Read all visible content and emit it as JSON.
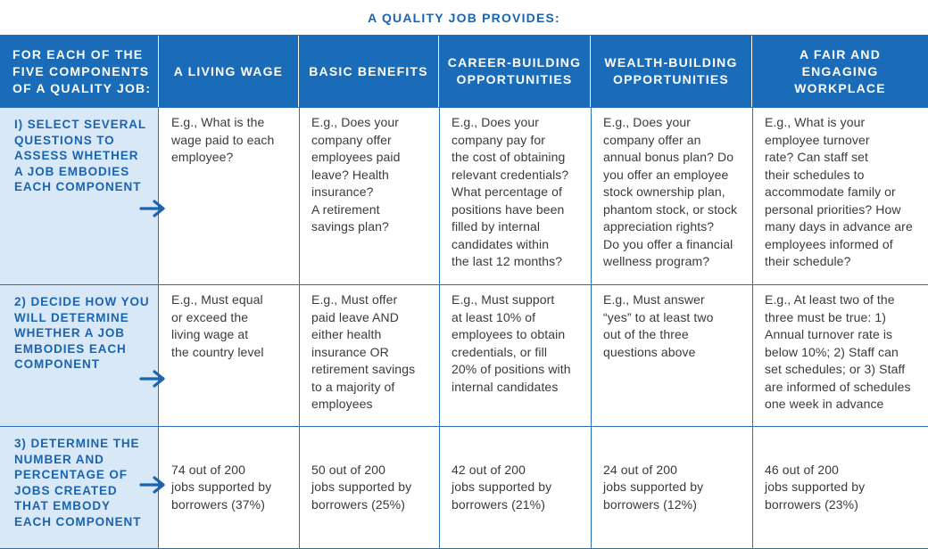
{
  "title": "A QUALITY JOB PROVIDES:",
  "header": {
    "row_label": "FOR EACH OF THE\nFIVE COMPONENTS\nOF A QUALITY JOB:",
    "columns": [
      "A LIVING WAGE",
      "BASIC BENEFITS",
      "CAREER-BUILDING\nOPPORTUNITIES",
      "WEALTH-BUILDING\nOPPORTUNITIES",
      "A FAIR AND\nENGAGING\nWORKPLACE"
    ]
  },
  "rows": [
    {
      "step": "I) SELECT SEVERAL\n    QUESTIONS TO\n    ASSESS WHETHER\n    A JOB EMBODIES\n    EACH COMPONENT",
      "cells": [
        "E.g., What is the\nwage paid to each\nemployee?",
        "E.g., Does your\ncompany offer\nemployees paid\nleave? Health\ninsurance?\nA retirement\nsavings plan?",
        "E.g., Does your\ncompany pay for\nthe cost of obtaining\nrelevant credentials?\nWhat percentage of\npositions have been\nfilled by internal\ncandidates within\nthe last 12 months?",
        "E.g., Does your\ncompany offer an\nannual bonus plan? Do\nyou offer an employee\nstock ownership plan,\nphantom stock, or stock\nappreciation rights?\nDo you offer a financial\nwellness program?",
        "E.g., What is your\nemployee turnover\nrate? Can staff set\ntheir schedules to\naccommodate family or\npersonal priorities? How\nmany days in advance are\nemployees informed of\ntheir schedule?"
      ]
    },
    {
      "step": "2) DECIDE HOW YOU\n    WILL DETERMINE\n    WHETHER A JOB\n    EMBODIES EACH\n    COMPONENT",
      "cells": [
        "E.g., Must equal\nor exceed the\nliving wage at\nthe country level",
        "E.g., Must offer\npaid leave AND\neither health\ninsurance OR\nretirement savings\nto a majority of\nemployees",
        "E.g., Must support\nat least 10% of\nemployees to obtain\ncredentials, or fill\n20% of positions with\ninternal candidates",
        "E.g., Must answer\n“yes” to at least two\nout of the three\nquestions above",
        "E.g., At least two of the\nthree must be true: 1)\nAnnual turnover rate is\nbelow 10%; 2) Staff can\nset schedules; or 3) Staff\nare informed of schedules\none week in advance"
      ]
    },
    {
      "step": "3) DETERMINE THE\n    NUMBER AND\n    PERCENTAGE OF\n    JOBS CREATED\n    THAT EMBODY\n    EACH COMPONENT",
      "cells": [
        "74 out of 200\njobs supported by\nborrowers (37%)",
        "50 out of 200\njobs supported by\nborrowers (25%)",
        "42 out of 200\njobs supported by\nborrowers (21%)",
        "24 out of 200\njobs supported by\nborrowers (12%)",
        "46 out of 200\njobs supported by\nborrowers (23%)"
      ]
    }
  ],
  "colors": {
    "accent": "#1a6bb8",
    "step_bg": "#d8e8f6",
    "text": "#3a3a3a"
  }
}
